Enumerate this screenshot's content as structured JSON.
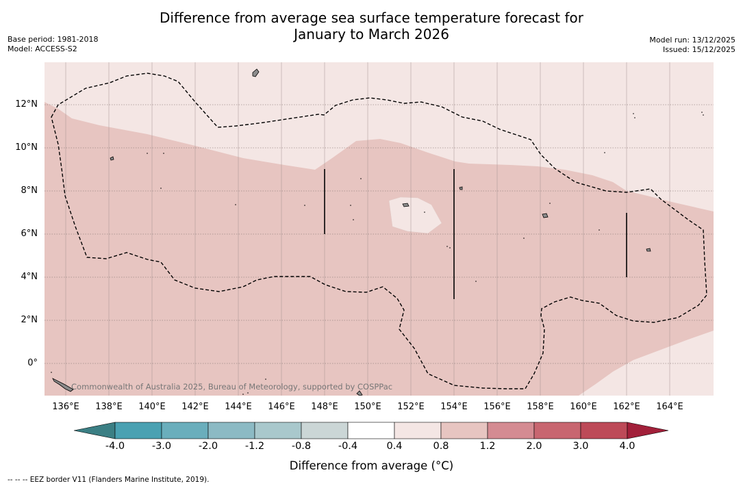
{
  "title_line1": "Difference from average sea surface temperature forecast for",
  "title_line2": "January to March 2026",
  "meta_left": {
    "base_period": "Base period: 1981-2018",
    "model": "Model: ACCESS-S2"
  },
  "meta_right": {
    "model_run": "Model run: 13/12/2025",
    "issued": "Issued: 15/12/2025"
  },
  "credit": "Commonwealth of Australia 2025, Bureau of Meteorology, supported by COSPPac",
  "lat_labels": [
    "12°N",
    "10°N",
    "8°N",
    "6°N",
    "4°N",
    "2°N",
    "0°"
  ],
  "lon_labels": [
    "136°E",
    "138°E",
    "140°E",
    "142°E",
    "144°E",
    "146°E",
    "148°E",
    "150°E",
    "152°E",
    "154°E",
    "156°E",
    "158°E",
    "160°E",
    "162°E",
    "164°E"
  ],
  "colorbar": {
    "ticks": [
      "-4.0",
      "-3.0",
      "-2.0",
      "-1.2",
      "-0.8",
      "-0.4",
      "0.4",
      "0.8",
      "1.2",
      "2.0",
      "3.0",
      "4.0"
    ],
    "colors": {
      "under": "#3b7f84",
      "bins": [
        "#4aa1b2",
        "#6aaebc",
        "#8cbac4",
        "#a9c8cc",
        "#cbd6d6",
        "#ffffff",
        "#f4e6e4",
        "#e7c5c1",
        "#d48b92",
        "#c86670",
        "#bd4a58"
      ],
      "over": "#a2203a"
    },
    "title": "Difference from average (°C)"
  },
  "footnote": "-- -- -- EEZ border V11 (Flanders Marine Institute, 2019).",
  "map_colors": {
    "background": "#f4e6e4",
    "band": "#e7c5c1",
    "patch": "#f4e6e4"
  }
}
